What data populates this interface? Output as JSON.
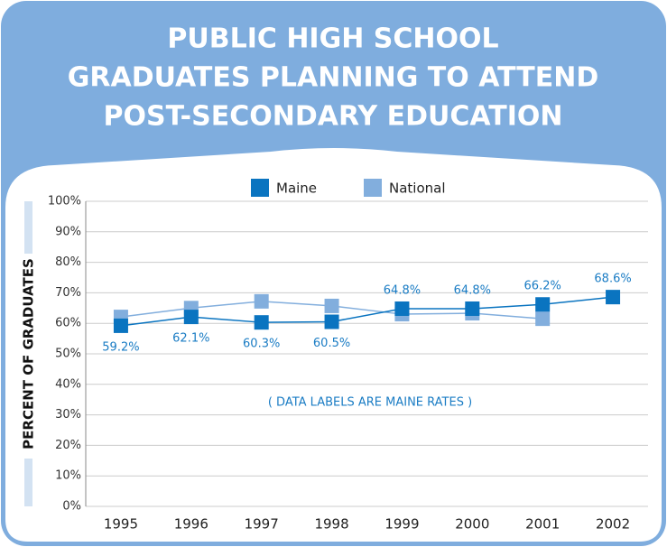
{
  "chart_data": {
    "type": "line",
    "title": [
      "PUBLIC HIGH SCHOOL",
      "GRADUATES PLANNING TO ATTEND",
      "POST-SECONDARY EDUCATION"
    ],
    "y_label": "PERCENT OF GRADUATES",
    "annotation": "( DATA LABELS ARE MAINE RATES )",
    "categories": [
      "1995",
      "1996",
      "1997",
      "1998",
      "1999",
      "2000",
      "2001",
      "2002"
    ],
    "series": [
      {
        "name": "Maine",
        "color": "#0a74c0",
        "values": [
          59.2,
          62.1,
          60.3,
          60.5,
          64.8,
          64.8,
          66.2,
          68.6
        ],
        "value_labels": [
          "59.2%",
          "62.1%",
          "60.3%",
          "60.5%",
          "64.8%",
          "64.8%",
          "66.2%",
          "68.6%"
        ]
      },
      {
        "name": "National",
        "color": "#82aedd",
        "values": [
          62.1,
          65,
          67.2,
          65.7,
          63,
          63.3,
          61.5,
          null
        ]
      }
    ],
    "ylim": [
      0,
      100
    ],
    "yticks": [
      {
        "value": 0,
        "label": "0%"
      },
      {
        "value": 10,
        "label": "10%"
      },
      {
        "value": 20,
        "label": "20%"
      },
      {
        "value": 30,
        "label": "30%"
      },
      {
        "value": 40,
        "label": "40%"
      },
      {
        "value": 50,
        "label": "50%"
      },
      {
        "value": 60,
        "label": "60%"
      },
      {
        "value": 70,
        "label": "70%"
      },
      {
        "value": 80,
        "label": "80%"
      },
      {
        "value": 90,
        "label": "90%"
      },
      {
        "value": 100,
        "label": "100%"
      }
    ],
    "grid": true,
    "legend": "top"
  }
}
